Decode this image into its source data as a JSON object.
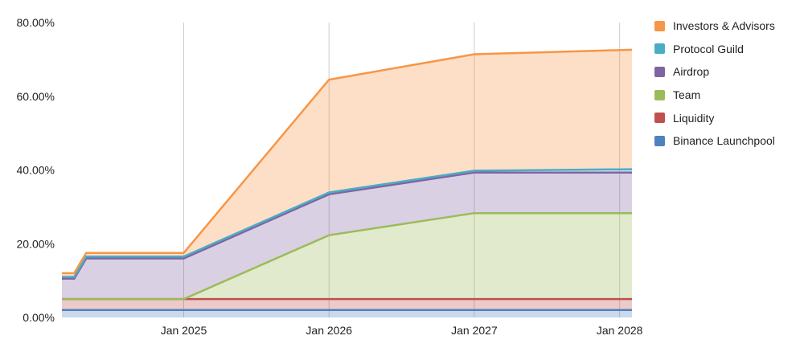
{
  "chart_data": {
    "type": "area",
    "stacked": true,
    "y_format": "percent",
    "ylim": [
      0,
      80
    ],
    "y_ticks": [
      "0.00%",
      "20.00%",
      "40.00%",
      "60.00%",
      "80.00%"
    ],
    "y_tick_values": [
      0,
      20,
      40,
      60,
      80
    ],
    "x_range": [
      "2024-03-01",
      "2028-02-01"
    ],
    "x_ticks": [
      "Jan 2025",
      "Jan 2026",
      "Jan 2027",
      "Jan 2028"
    ],
    "x_tick_dates": [
      "2025-01-01",
      "2026-01-01",
      "2027-01-01",
      "2028-01-01"
    ],
    "grid": "vertical",
    "legend_position": "right",
    "x": [
      "2024-03-01",
      "2024-04-01",
      "2024-05-01",
      "2024-12-01",
      "2025-01-01",
      "2026-01-01",
      "2027-01-01",
      "2028-02-01"
    ],
    "series": [
      {
        "name": "Binance Launchpool",
        "color": "#4f81bd",
        "values": [
          2,
          2,
          2,
          2,
          2,
          2,
          2,
          2
        ]
      },
      {
        "name": "Liquidity",
        "color": "#c0504d",
        "values": [
          3,
          3,
          3,
          3,
          3,
          3,
          3,
          3
        ]
      },
      {
        "name": "Team",
        "color": "#9bbb59",
        "values": [
          0,
          0,
          0,
          0,
          0,
          17.3,
          23.3,
          23.3
        ]
      },
      {
        "name": "Airdrop",
        "color": "#8064a2",
        "values": [
          5.5,
          5.5,
          11,
          11,
          11,
          11.1,
          11,
          11
        ]
      },
      {
        "name": "Protocol Guild",
        "color": "#4bacc6",
        "values": [
          0.5,
          0.5,
          0.5,
          0.5,
          0.5,
          0.5,
          0.5,
          0.9
        ]
      },
      {
        "name": "Investors & Advisors",
        "color": "#f79646",
        "values": [
          1,
          1,
          1,
          1,
          1,
          30.6,
          31.6,
          32.4
        ]
      }
    ]
  }
}
